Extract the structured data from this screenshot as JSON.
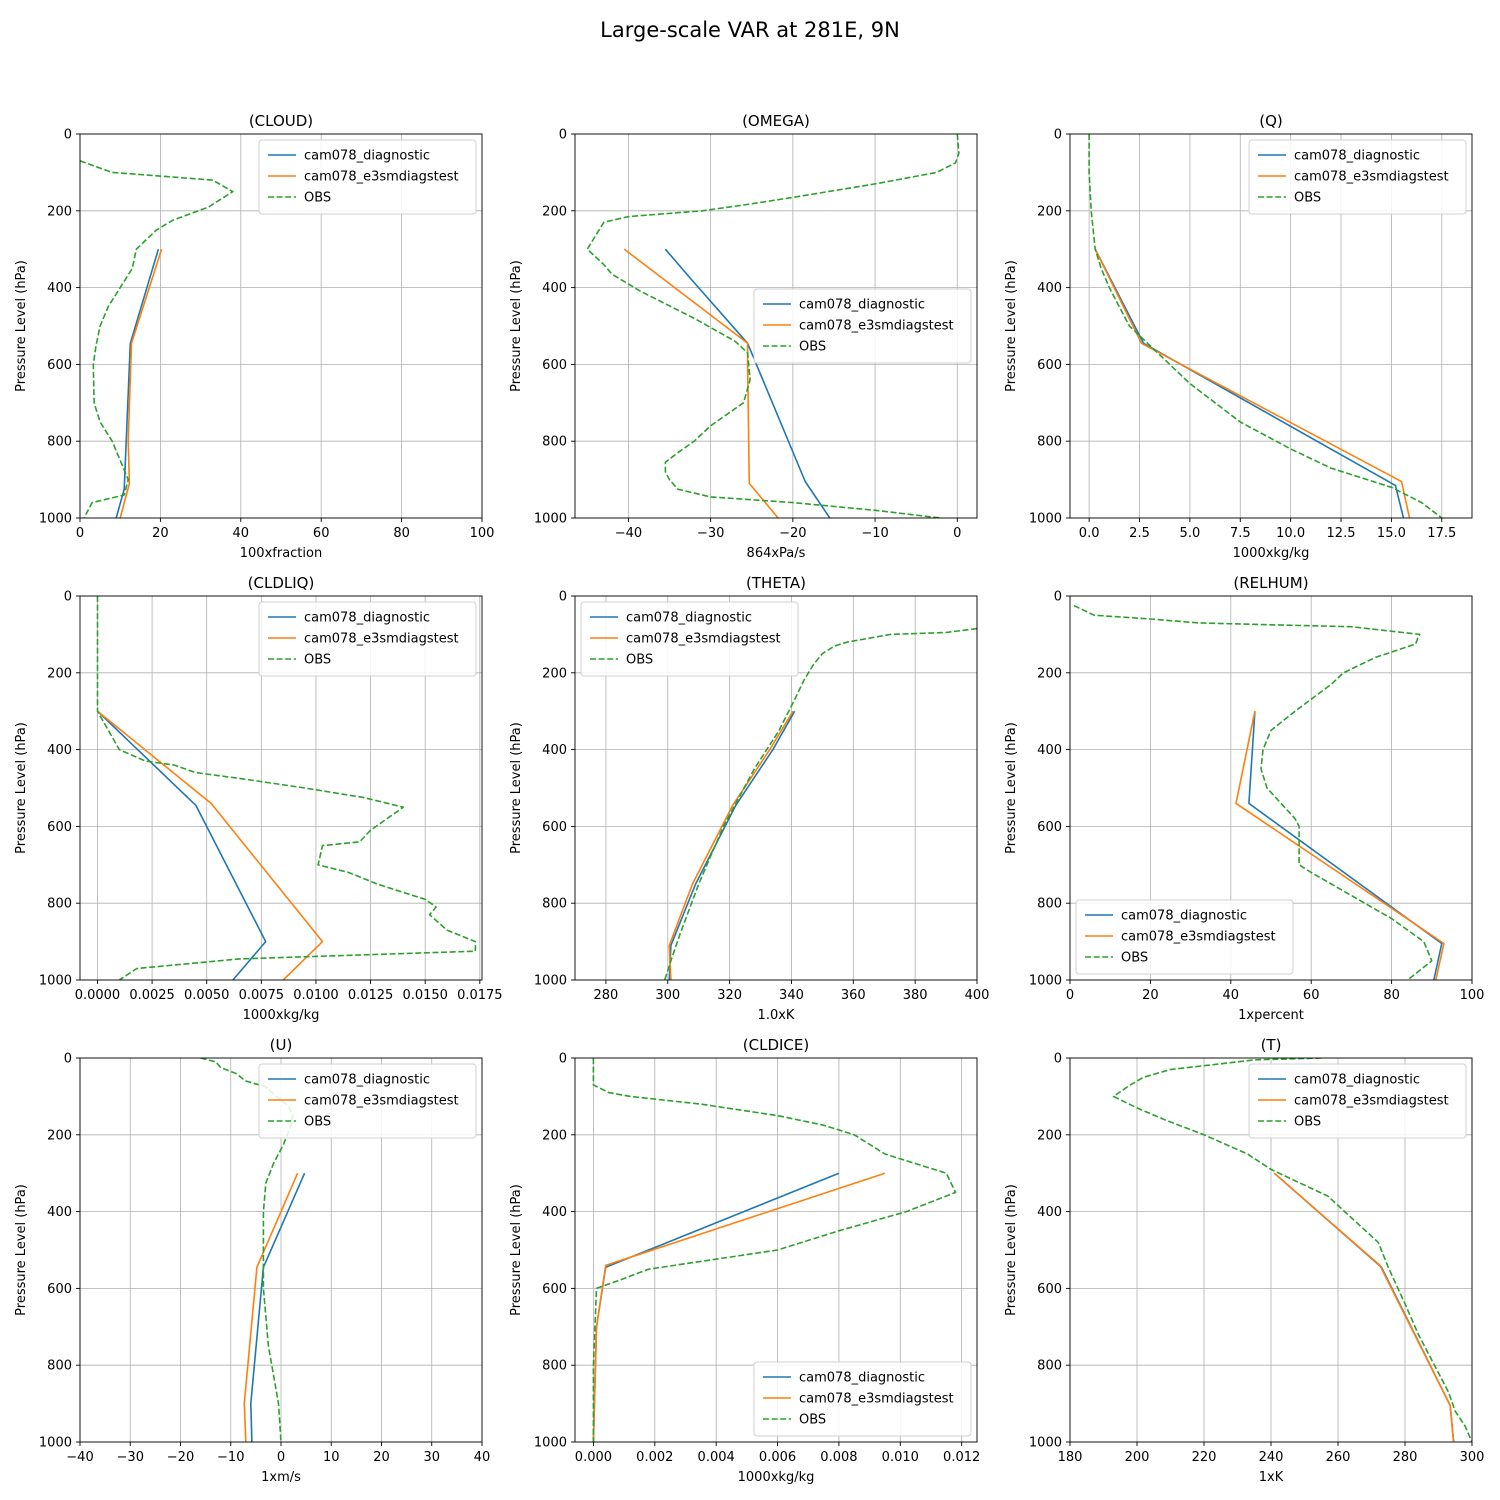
{
  "figure": {
    "title": "Large-scale VAR at 281E, 9N"
  },
  "colors": {
    "diag": "#1f77b4",
    "test": "#ff7f0e",
    "obs": "#2ca02c",
    "grid": "#b0b0b0"
  },
  "chart_data": [
    {
      "type": "line",
      "title": "(CLOUD)",
      "xlabel": "100xfraction",
      "ylabel": "Pressure Level (hPa)",
      "xlim": [
        0,
        100
      ],
      "ylim": [
        1000,
        0
      ],
      "y_inverted": true,
      "xticks": [
        0,
        20,
        40,
        60,
        80,
        100
      ],
      "yticks": [
        0,
        200,
        400,
        600,
        800,
        1000
      ],
      "grid": true,
      "legend": "upper right",
      "series": [
        {
          "name": "cam078_diagnostic",
          "style": "solid",
          "x": [
            19.5,
            12.5,
            11.5,
            11,
            9
          ],
          "y": [
            300,
            545,
            800,
            925,
            1000
          ]
        },
        {
          "name": "cam078_e3smdiagstest",
          "style": "solid",
          "x": [
            20.3,
            12.8,
            12,
            12.3,
            10
          ],
          "y": [
            300,
            545,
            800,
            910,
            1000
          ]
        },
        {
          "name": "OBS",
          "style": "dashed",
          "x": [
            0,
            8,
            33,
            38,
            32,
            23,
            19,
            14,
            13,
            10,
            7,
            5,
            4,
            3.3,
            3.5,
            5,
            8,
            10,
            12,
            11,
            3,
            1
          ],
          "y": [
            70,
            100,
            120,
            150,
            190,
            225,
            250,
            300,
            350,
            400,
            450,
            500,
            550,
            600,
            700,
            750,
            800,
            850,
            900,
            940,
            960,
            1000
          ]
        }
      ]
    },
    {
      "type": "line",
      "title": "(OMEGA)",
      "xlabel": "864xPa/s",
      "ylabel": "Pressure Level (hPa)",
      "xlim": [
        -46.5,
        2.4
      ],
      "ylim": [
        1000,
        0
      ],
      "y_inverted": true,
      "xticks": [
        -40,
        -30,
        -20,
        -10,
        0
      ],
      "yticks": [
        0,
        200,
        400,
        600,
        800,
        1000
      ],
      "grid": true,
      "legend": "center right",
      "series": [
        {
          "name": "cam078_diagnostic",
          "style": "solid",
          "x": [
            -35.5,
            -32.5,
            -25.5,
            -18.5,
            -15.5
          ],
          "y": [
            300,
            375,
            545,
            905,
            1000
          ]
        },
        {
          "name": "cam078_e3smdiagstest",
          "style": "solid",
          "x": [
            -40.5,
            -25.5,
            -25.5,
            -25.3,
            -21.8
          ],
          "y": [
            300,
            545,
            600,
            910,
            1000
          ]
        },
        {
          "name": "OBS",
          "style": "dashed",
          "x": [
            0,
            0.2,
            -0.2,
            -2.5,
            -7.5,
            -10,
            -20,
            -26,
            -31,
            -40,
            -43,
            -45,
            -43,
            -42,
            -38.5,
            -32,
            -27,
            -25.5,
            -25.2,
            -26,
            -30,
            -32,
            -34,
            -35.5,
            -35.5,
            -35,
            -34,
            -30,
            -20,
            -10,
            -2
          ],
          "y": [
            0,
            50,
            75,
            100,
            120,
            130,
            165,
            185,
            200,
            215,
            230,
            300,
            340,
            365,
            410,
            480,
            540,
            570,
            640,
            700,
            760,
            800,
            830,
            855,
            880,
            900,
            925,
            945,
            960,
            980,
            1000
          ]
        }
      ]
    },
    {
      "type": "line",
      "title": "(Q)",
      "xlabel": "1000xkg/kg",
      "ylabel": "Pressure Level (hPa)",
      "xlim": [
        -0.95,
        19.0
      ],
      "ylim": [
        1000,
        0
      ],
      "y_inverted": true,
      "xticks": [
        0,
        2.5,
        5,
        7.5,
        10,
        12.5,
        15,
        17.5
      ],
      "xticklabels": [
        "0.0",
        "2.5",
        "5.0",
        "7.5",
        "10.0",
        "12.5",
        "15.0",
        "17.5"
      ],
      "yticks": [
        0,
        200,
        400,
        600,
        800,
        1000
      ],
      "grid": true,
      "legend": "upper right",
      "series": [
        {
          "name": "cam078_diagnostic",
          "style": "solid",
          "x": [
            0.3,
            2.7,
            15.2,
            15.6
          ],
          "y": [
            300,
            545,
            915,
            1000
          ]
        },
        {
          "name": "cam078_e3smdiagstest",
          "style": "solid",
          "x": [
            0.3,
            2.6,
            15.5,
            15.9
          ],
          "y": [
            300,
            545,
            905,
            1000
          ]
        },
        {
          "name": "OBS",
          "style": "dashed",
          "x": [
            0,
            0,
            0.1,
            0.3,
            0.6,
            1,
            2,
            3,
            5,
            7.5,
            10,
            12,
            15,
            16.5,
            17.5
          ],
          "y": [
            0,
            100,
            200,
            300,
            350,
            400,
            500,
            550,
            650,
            750,
            820,
            870,
            920,
            960,
            1000
          ]
        }
      ]
    },
    {
      "type": "line",
      "title": "(CLDLIQ)",
      "xlabel": "1000xkg/kg",
      "ylabel": "Pressure Level (hPa)",
      "xlim": [
        -0.0008,
        0.0176
      ],
      "ylim": [
        1000,
        0
      ],
      "y_inverted": true,
      "xticks": [
        0,
        0.0025,
        0.005,
        0.0075,
        0.01,
        0.0125,
        0.015,
        0.0175
      ],
      "xticklabels": [
        "0.0000",
        "0.0025",
        "0.0050",
        "0.0075",
        "0.0100",
        "0.0125",
        "0.0150",
        "0.0175"
      ],
      "yticks": [
        0,
        200,
        400,
        600,
        800,
        1000
      ],
      "grid": true,
      "legend": "upper right",
      "series": [
        {
          "name": "cam078_diagnostic",
          "style": "solid",
          "x": [
            0,
            0.0045,
            0.0077,
            0.0062
          ],
          "y": [
            300,
            545,
            900,
            1000
          ]
        },
        {
          "name": "cam078_e3smdiagstest",
          "style": "solid",
          "x": [
            0,
            0.0052,
            0.0103,
            0.0085
          ],
          "y": [
            300,
            540,
            900,
            1000
          ]
        },
        {
          "name": "OBS",
          "style": "dashed",
          "x": [
            0,
            0,
            0,
            0.0005,
            0.001,
            0.0022,
            0.0035,
            0.0045,
            0.0065,
            0.0095,
            0.0122,
            0.014,
            0.0125,
            0.012,
            0.0103,
            0.0101,
            0.0115,
            0.0128,
            0.015,
            0.0155,
            0.0152,
            0.016,
            0.0173,
            0.0173,
            0.0065,
            0.0018,
            0.001
          ],
          "y": [
            0,
            200,
            300,
            350,
            400,
            430,
            440,
            460,
            475,
            500,
            525,
            550,
            610,
            640,
            650,
            700,
            720,
            750,
            790,
            810,
            830,
            870,
            900,
            925,
            945,
            970,
            1000
          ]
        }
      ]
    },
    {
      "type": "line",
      "title": "(THETA)",
      "xlabel": "1.0xK",
      "ylabel": "Pressure Level (hPa)",
      "xlim": [
        270,
        400
      ],
      "ylim": [
        1000,
        0
      ],
      "y_inverted": true,
      "xticks": [
        280,
        300,
        320,
        340,
        360,
        380,
        400
      ],
      "yticks": [
        0,
        200,
        400,
        600,
        800,
        1000
      ],
      "grid": true,
      "legend": "upper left",
      "series": [
        {
          "name": "cam078_diagnostic",
          "style": "solid",
          "x": [
            341,
            334,
            322,
            309,
            301,
            300.5
          ],
          "y": [
            300,
            400,
            545,
            750,
            910,
            1000
          ]
        },
        {
          "name": "cam078_e3smdiagstest",
          "style": "solid",
          "x": [
            340.5,
            333,
            321,
            308,
            300.5,
            301
          ],
          "y": [
            300,
            400,
            545,
            750,
            910,
            1000
          ]
        },
        {
          "name": "OBS",
          "style": "dashed",
          "x": [
            400,
            390,
            372,
            358,
            354,
            350,
            347,
            344,
            341,
            336,
            328,
            318,
            310,
            304,
            301,
            299
          ],
          "y": [
            85,
            95,
            100,
            120,
            130,
            150,
            180,
            220,
            270,
            350,
            450,
            600,
            750,
            880,
            950,
            1000
          ]
        }
      ]
    },
    {
      "type": "line",
      "title": "(RELHUM)",
      "xlabel": "1xpercent",
      "ylabel": "Pressure Level (hPa)",
      "xlim": [
        0,
        100
      ],
      "ylim": [
        1000,
        0
      ],
      "y_inverted": true,
      "xticks": [
        0,
        20,
        40,
        60,
        80,
        100
      ],
      "yticks": [
        0,
        200,
        400,
        600,
        800,
        1000
      ],
      "grid": true,
      "legend": "lower left",
      "series": [
        {
          "name": "cam078_diagnostic",
          "style": "solid",
          "x": [
            46,
            44.5,
            92.5,
            90.5
          ],
          "y": [
            300,
            540,
            905,
            1000
          ]
        },
        {
          "name": "cam078_e3smdiagstest",
          "style": "solid",
          "x": [
            46,
            41.3,
            93,
            91
          ],
          "y": [
            300,
            540,
            905,
            1000
          ]
        },
        {
          "name": "OBS",
          "style": "dashed",
          "x": [
            1,
            6,
            20,
            32,
            50,
            70,
            87,
            86.5,
            86,
            76,
            68,
            65,
            56,
            50,
            48,
            47.5,
            49,
            56,
            57,
            57,
            60,
            65,
            80,
            88,
            90,
            84
          ],
          "y": [
            25,
            50,
            60,
            70,
            75,
            80,
            100,
            110,
            125,
            160,
            200,
            230,
            300,
            350,
            400,
            450,
            500,
            580,
            600,
            700,
            720,
            750,
            840,
            900,
            950,
            1000
          ]
        }
      ]
    },
    {
      "type": "line",
      "title": "(U)",
      "xlabel": "1xm/s",
      "ylabel": "Pressure Level (hPa)",
      "xlim": [
        -40,
        40
      ],
      "ylim": [
        1000,
        0
      ],
      "y_inverted": true,
      "xticks": [
        -40,
        -30,
        -20,
        -10,
        0,
        10,
        20,
        30,
        40
      ],
      "xticklabels": [
        "−40",
        "−30",
        "−20",
        "−10",
        "0",
        "10",
        "20",
        "30",
        "40"
      ],
      "yticks": [
        0,
        200,
        400,
        600,
        800,
        1000
      ],
      "grid": true,
      "legend": "upper right",
      "series": [
        {
          "name": "cam078_diagnostic",
          "style": "solid",
          "x": [
            4.7,
            -3.5,
            -6,
            -5.8
          ],
          "y": [
            300,
            545,
            900,
            1000
          ]
        },
        {
          "name": "cam078_e3smdiagstest",
          "style": "solid",
          "x": [
            3.3,
            -4.8,
            -7.3,
            -7
          ],
          "y": [
            300,
            545,
            900,
            1000
          ]
        },
        {
          "name": "OBS",
          "style": "dashed",
          "x": [
            -16,
            -13,
            -12,
            -9,
            -7,
            -3,
            -1,
            1.5,
            2.3,
            2,
            0.5,
            -1.5,
            -3,
            -3.5,
            -3.5,
            -3.5,
            -2.5,
            -0.5,
            0
          ],
          "y": [
            0,
            10,
            25,
            40,
            60,
            75,
            100,
            125,
            150,
            175,
            225,
            275,
            325,
            400,
            500,
            600,
            750,
            900,
            1000
          ]
        }
      ]
    },
    {
      "type": "line",
      "title": "(CLDICE)",
      "xlabel": "1000xkg/kg",
      "ylabel": "Pressure Level (hPa)",
      "xlim": [
        -0.0006,
        0.0125
      ],
      "ylim": [
        1000,
        0
      ],
      "y_inverted": true,
      "xticks": [
        0,
        0.002,
        0.004,
        0.006,
        0.008,
        0.01,
        0.012
      ],
      "xticklabels": [
        "0.000",
        "0.002",
        "0.004",
        "0.006",
        "0.008",
        "0.010",
        "0.012"
      ],
      "yticks": [
        0,
        200,
        400,
        600,
        800,
        1000
      ],
      "grid": true,
      "legend": "lower right",
      "series": [
        {
          "name": "cam078_diagnostic",
          "style": "solid",
          "x": [
            0.008,
            0.0004,
            0.0001,
            0
          ],
          "y": [
            300,
            545,
            700,
            1000
          ]
        },
        {
          "name": "cam078_e3smdiagstest",
          "style": "solid",
          "x": [
            0.0095,
            0.0004,
            0.0001,
            0
          ],
          "y": [
            300,
            540,
            700,
            1000
          ]
        },
        {
          "name": "OBS",
          "style": "dashed",
          "x": [
            0,
            0,
            0.0005,
            0.0012,
            0.0035,
            0.006,
            0.0075,
            0.0085,
            0.0095,
            0.0115,
            0.0118,
            0.0102,
            0.008,
            0.006,
            0.0018,
            0.0008,
            0.0001,
            0,
            0
          ],
          "y": [
            0,
            70,
            90,
            100,
            120,
            150,
            175,
            200,
            250,
            300,
            350,
            400,
            450,
            500,
            550,
            580,
            600,
            800,
            1000
          ]
        }
      ]
    },
    {
      "type": "line",
      "title": "(T)",
      "xlabel": "1xK",
      "ylabel": "Pressure Level (hPa)",
      "xlim": [
        180,
        300
      ],
      "ylim": [
        1000,
        0
      ],
      "y_inverted": true,
      "xticks": [
        180,
        200,
        220,
        240,
        260,
        280,
        300
      ],
      "yticks": [
        0,
        200,
        400,
        600,
        800,
        1000
      ],
      "grid": true,
      "legend": "upper right",
      "series": [
        {
          "name": "cam078_diagnostic",
          "style": "solid",
          "x": [
            241,
            273,
            293.5,
            294.5
          ],
          "y": [
            300,
            545,
            905,
            1000
          ]
        },
        {
          "name": "cam078_e3smdiagstest",
          "style": "solid",
          "x": [
            241,
            272.5,
            293.5,
            294.5
          ],
          "y": [
            300,
            540,
            905,
            1000
          ]
        },
        {
          "name": "OBS",
          "style": "dashed",
          "x": [
            255,
            235,
            225,
            210,
            202,
            198,
            193,
            200,
            208,
            220,
            233,
            240,
            257,
            262,
            272,
            275,
            280,
            284,
            293,
            295,
            298,
            300
          ],
          "y": [
            0,
            5,
            15,
            30,
            50,
            70,
            100,
            130,
            160,
            200,
            250,
            290,
            360,
            400,
            480,
            545,
            640,
            720,
            870,
            920,
            960,
            1000
          ]
        }
      ]
    }
  ]
}
